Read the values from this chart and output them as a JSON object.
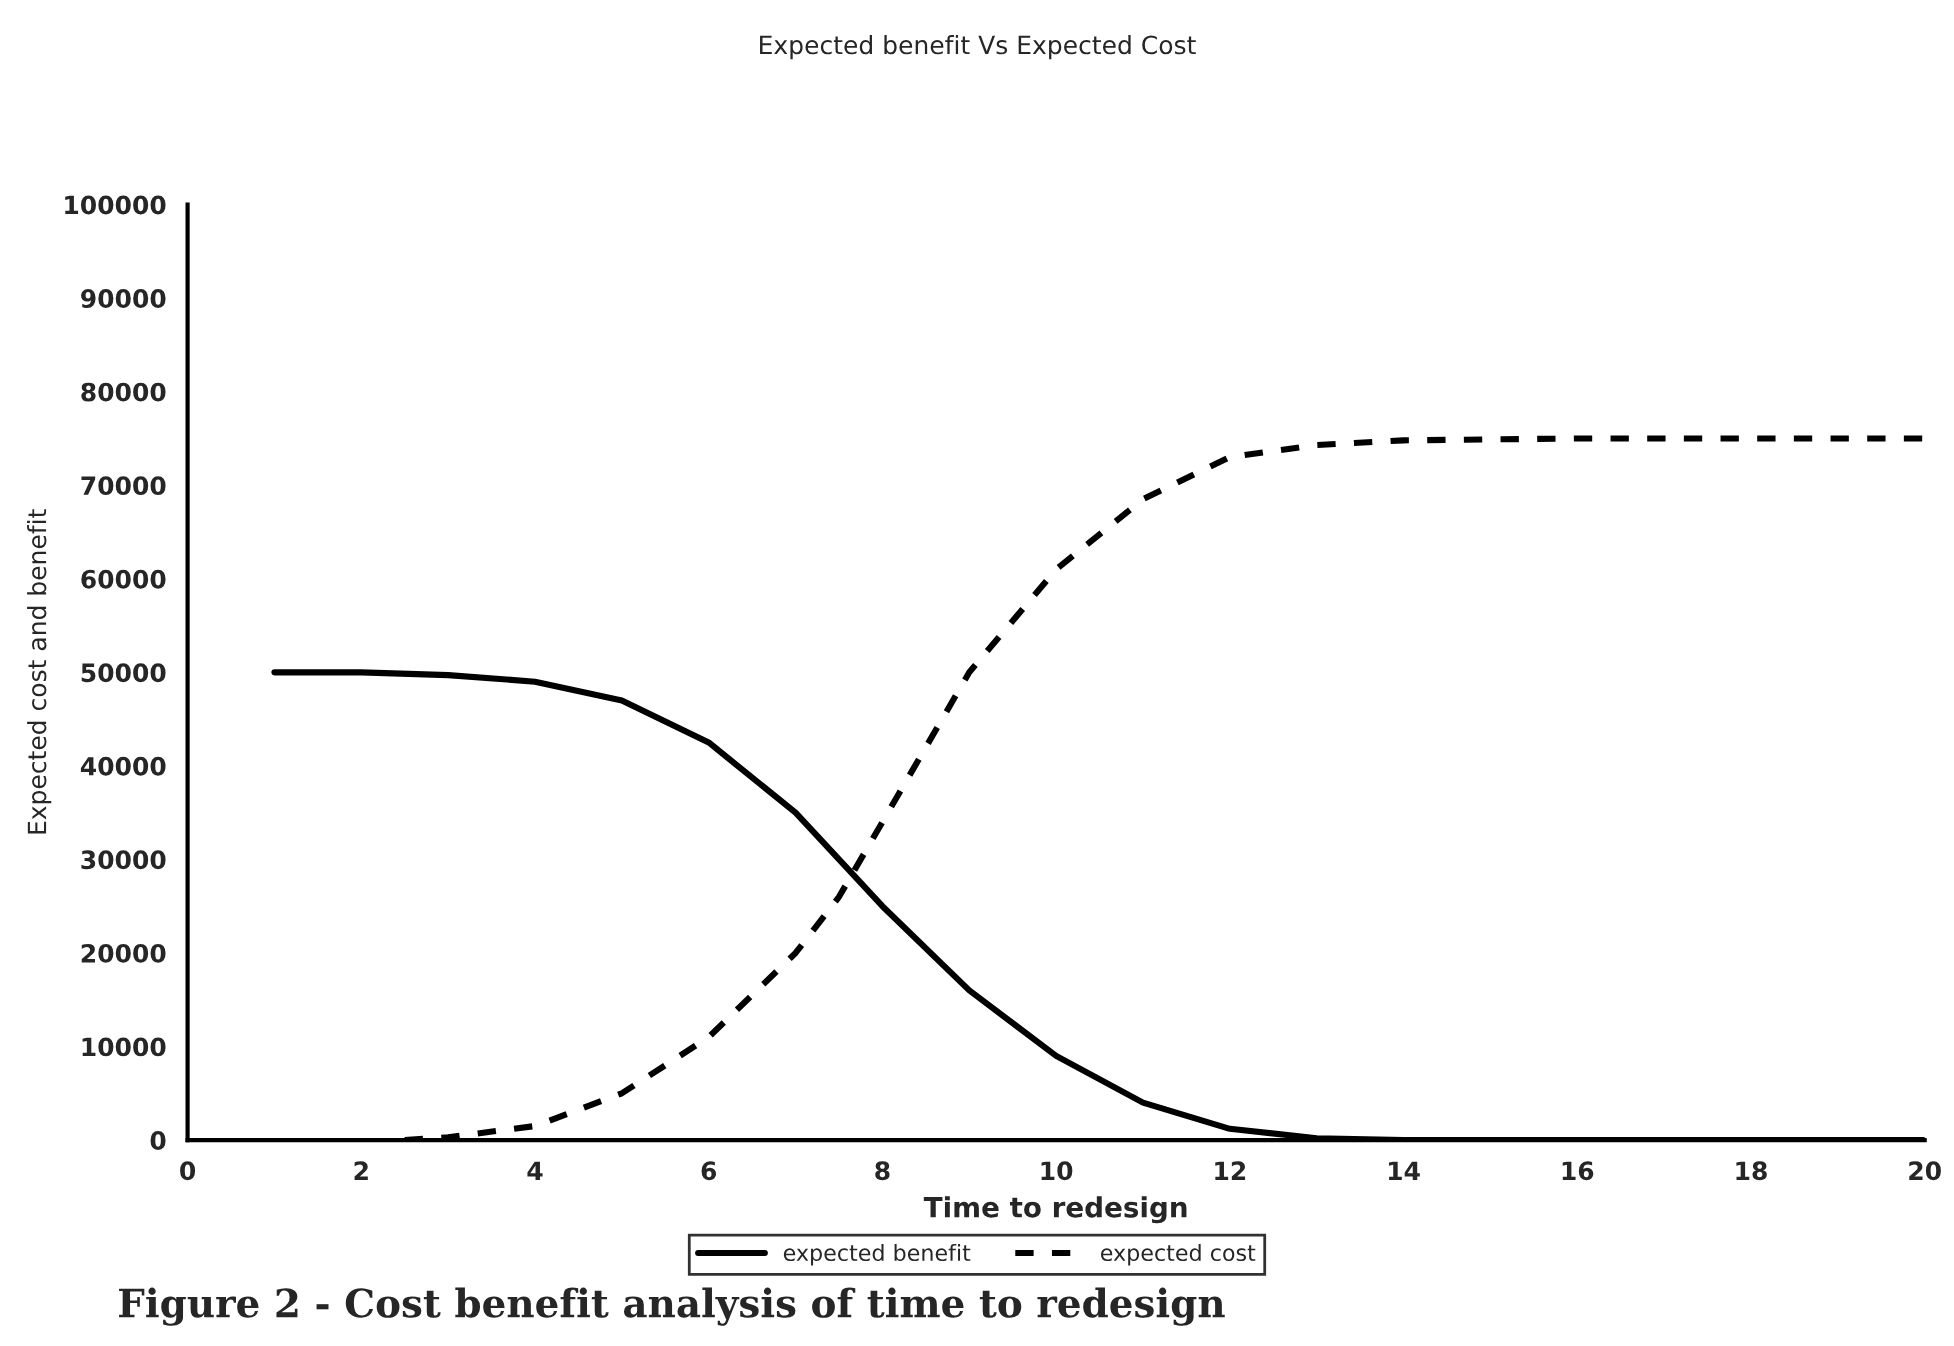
{
  "chart_data": {
    "type": "line",
    "title": "Expected benefit Vs Expected Cost",
    "xlabel": "Time to redesign",
    "ylabel": "Expected cost and benefit",
    "series": [
      {
        "name": "expected benefit",
        "color": "#000000",
        "line_style": "solid",
        "x": [
          1,
          2,
          3,
          4,
          5,
          6,
          7,
          7.5,
          8,
          9,
          10,
          11,
          12,
          13,
          14,
          16,
          18,
          20
        ],
        "values": [
          50000,
          50000,
          49700,
          49000,
          47000,
          42500,
          35000,
          30000,
          25000,
          16000,
          9000,
          4000,
          1200,
          200,
          0,
          0,
          0,
          0
        ]
      },
      {
        "name": "expected cost",
        "color": "#000000",
        "line_style": "dashed",
        "x": [
          2.5,
          3,
          4,
          5,
          6,
          7,
          7.5,
          8,
          8.5,
          9,
          10,
          11,
          12,
          13,
          14,
          16,
          18,
          20
        ],
        "values": [
          0,
          300,
          1500,
          5000,
          11000,
          20000,
          26000,
          34000,
          42000,
          50000,
          61000,
          68500,
          73000,
          74300,
          74800,
          75000,
          75000,
          75000
        ]
      }
    ],
    "xlim": [
      0,
      20
    ],
    "xticks": [
      0,
      2,
      4,
      6,
      8,
      10,
      12,
      14,
      16,
      18,
      20
    ],
    "ylim": [
      0,
      100000
    ],
    "yticks": [
      0,
      10000,
      20000,
      30000,
      40000,
      50000,
      60000,
      70000,
      80000,
      90000,
      100000
    ],
    "grid": false,
    "legend": "bottom",
    "annotations": [
      "Figure 2 - Cost benefit analysis of time to redesign"
    ]
  }
}
